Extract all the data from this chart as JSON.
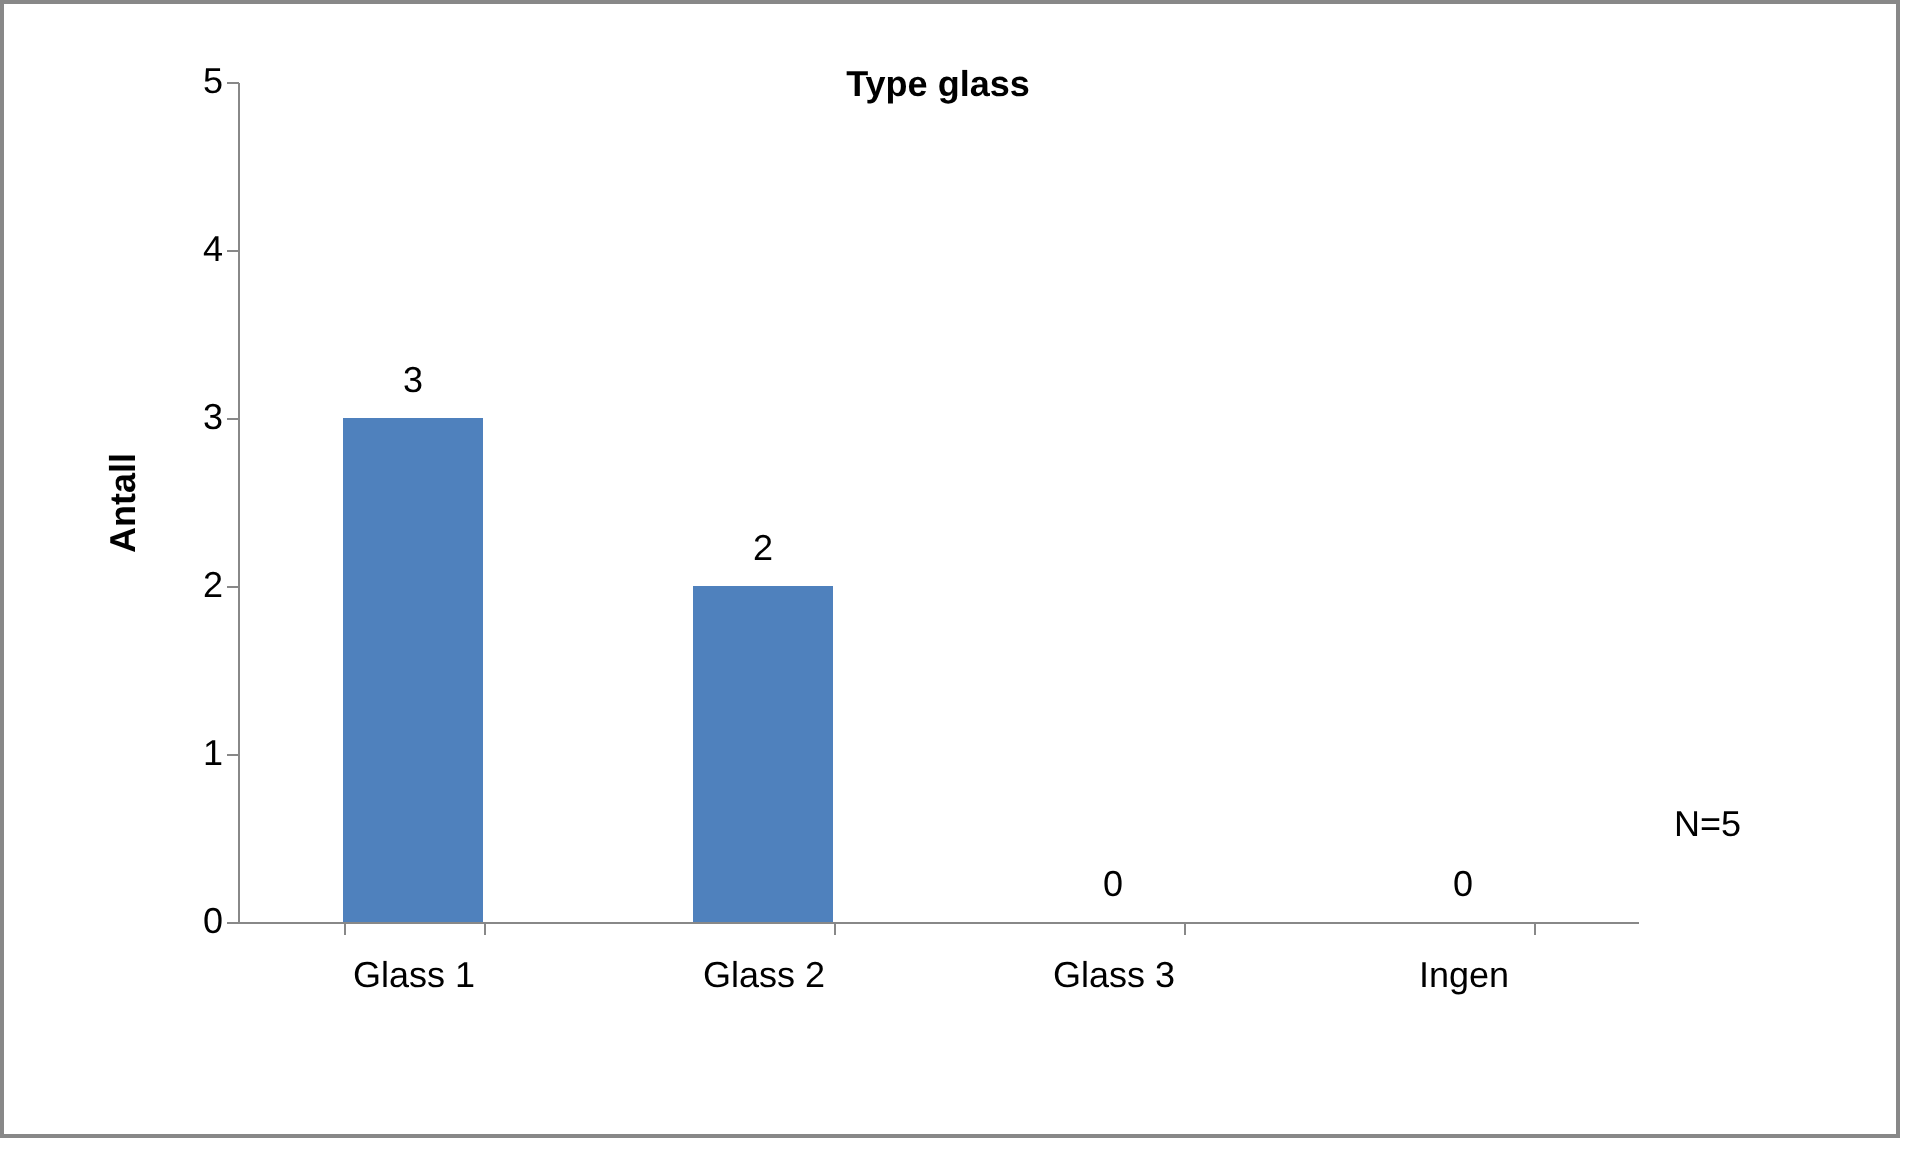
{
  "chart_data": {
    "type": "bar",
    "title": "Type glass",
    "ylabel": "Antall",
    "categories": [
      "Glass 1",
      "Glass 2",
      "Glass 3",
      "Ingen"
    ],
    "values": [
      3,
      2,
      0,
      0
    ],
    "color": "#4f81bd",
    "ylim": [
      0,
      5
    ],
    "yticks": [
      0,
      1,
      2,
      3,
      4,
      5
    ],
    "grid": false,
    "data_labels": true,
    "annotations": [
      "N=5"
    ]
  }
}
